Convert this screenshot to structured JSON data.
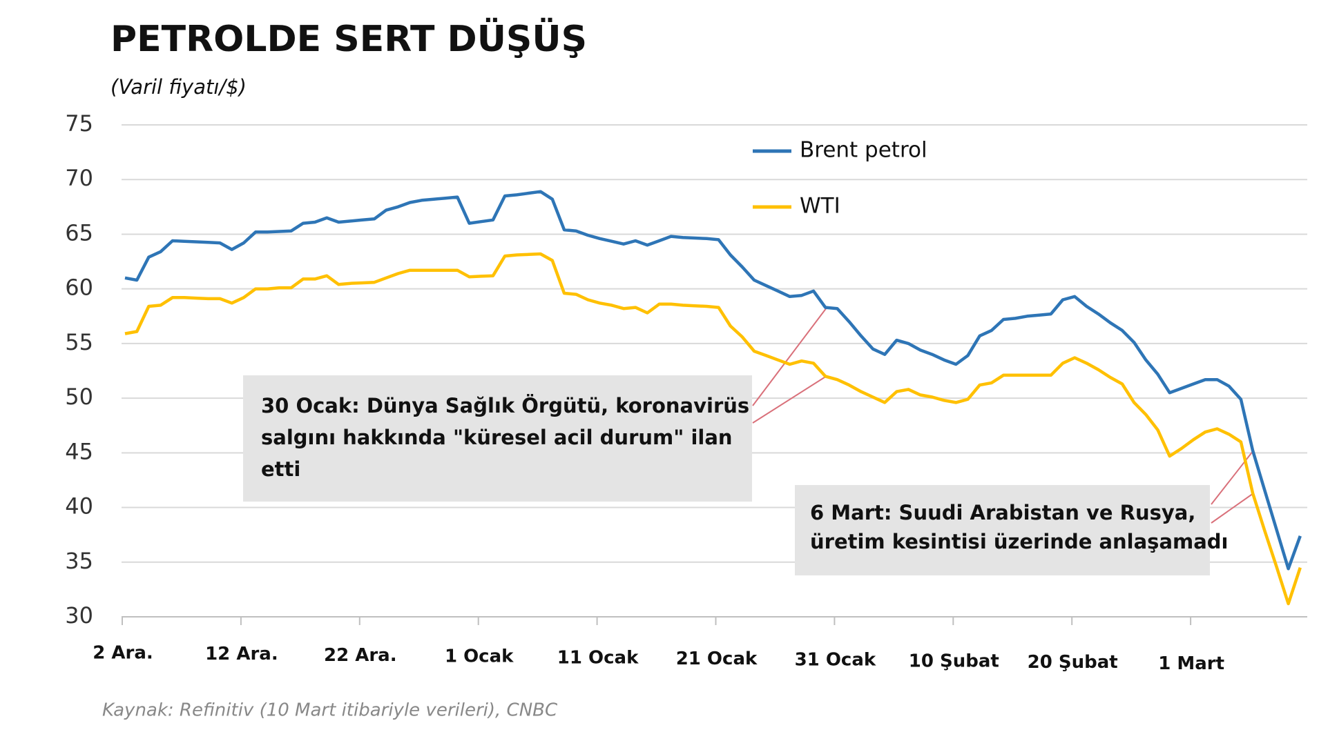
{
  "chart_data": {
    "type": "line",
    "title": "PETROLDE SERT DÜŞÜŞ",
    "subtitle": "(Varil fiyatı/$)",
    "source": "Kaynak: Refinitiv (10 Mart itibariyle verileri), CNBC",
    "annotations": [
      {
        "lines": [
          "30 Ocak: Dünya Sağlık Örgütü, koronavirüs",
          "salgını hakkında \"küresel acil durum\" ilan",
          "etti"
        ]
      },
      {
        "lines": [
          "6 Mart: Suudi Arabistan ve Rusya,",
          "üretim kesintisi üzerinde anlaşamadı"
        ]
      }
    ],
    "categories": [
      "2 Ara.",
      null,
      null,
      null,
      null,
      null,
      null,
      null,
      null,
      null,
      "12 Ara.",
      null,
      null,
      null,
      null,
      null,
      null,
      null,
      null,
      null,
      "22 Ara.",
      null,
      null,
      null,
      null,
      null,
      null,
      null,
      null,
      null,
      "1 Ocak",
      null,
      null,
      null,
      null,
      null,
      null,
      null,
      null,
      null,
      "11 Ocak",
      null,
      null,
      null,
      null,
      null,
      null,
      null,
      null,
      null,
      "21 Ocak",
      null,
      null,
      null,
      null,
      null,
      null,
      null,
      null,
      null,
      "31 Ocak",
      null,
      null,
      null,
      null,
      null,
      null,
      null,
      null,
      null,
      "10 Şubat",
      null,
      null,
      null,
      null,
      null,
      null,
      null,
      null,
      null,
      "20 Şubat",
      null,
      null,
      null,
      null,
      null,
      null,
      null,
      null,
      null,
      "1 Mart",
      null,
      null,
      null,
      null,
      null,
      null,
      null,
      null,
      null
    ],
    "series": [
      {
        "name": "Brent petrol",
        "color": "#2e75b6",
        "values": [
          61.0,
          60.8,
          62.9,
          63.4,
          64.4,
          64.35,
          64.3,
          64.25,
          64.2,
          63.6,
          64.2,
          65.2,
          65.2,
          65.25,
          65.3,
          66.0,
          66.1,
          66.5,
          66.1,
          66.2,
          66.3,
          66.4,
          67.2,
          67.5,
          67.9,
          68.1,
          68.2,
          68.3,
          68.4,
          66.0,
          66.15,
          66.3,
          68.5,
          68.6,
          68.75,
          68.9,
          68.2,
          65.4,
          65.3,
          64.9,
          64.6,
          64.35,
          64.1,
          64.4,
          64.0,
          64.4,
          64.8,
          64.7,
          64.65,
          64.6,
          64.5,
          63.1,
          62.0,
          60.8,
          60.3,
          59.8,
          59.3,
          59.4,
          59.8,
          58.3,
          58.2,
          57.0,
          55.7,
          54.5,
          54.0,
          55.3,
          55.0,
          54.4,
          54.0,
          53.5,
          53.1,
          53.9,
          55.7,
          56.2,
          57.2,
          57.3,
          57.5,
          57.6,
          57.7,
          59.0,
          59.3,
          58.4,
          57.7,
          56.9,
          56.2,
          55.1,
          53.5,
          52.2,
          50.5,
          50.9,
          51.3,
          51.7,
          51.7,
          51.1,
          49.9,
          45.2,
          41.6,
          38.0,
          34.4,
          37.4
        ]
      },
      {
        "name": "WTI",
        "color": "#ffc000",
        "values": [
          55.9,
          56.1,
          58.4,
          58.5,
          59.2,
          59.2,
          59.15,
          59.1,
          59.1,
          58.7,
          59.2,
          60.0,
          60.0,
          60.1,
          60.1,
          60.9,
          60.9,
          61.2,
          60.4,
          60.5,
          60.55,
          60.6,
          61.0,
          61.4,
          61.7,
          61.7,
          61.7,
          61.7,
          61.7,
          61.1,
          61.15,
          61.2,
          63.0,
          63.1,
          63.15,
          63.2,
          62.6,
          59.6,
          59.5,
          59.0,
          58.7,
          58.5,
          58.2,
          58.3,
          57.8,
          58.6,
          58.6,
          58.5,
          58.45,
          58.4,
          58.3,
          56.6,
          55.6,
          54.3,
          53.9,
          53.5,
          53.1,
          53.4,
          53.2,
          52.0,
          51.7,
          51.2,
          50.6,
          50.1,
          49.6,
          50.6,
          50.8,
          50.3,
          50.1,
          49.8,
          49.6,
          49.9,
          51.2,
          51.4,
          52.1,
          52.1,
          52.1,
          52.1,
          52.1,
          53.2,
          53.7,
          53.2,
          52.6,
          51.9,
          51.3,
          49.6,
          48.5,
          47.1,
          44.7,
          45.4,
          46.2,
          46.9,
          47.2,
          46.7,
          46.0,
          41.3,
          37.9,
          34.6,
          31.2,
          34.5
        ]
      }
    ],
    "ylim": [
      30,
      75
    ],
    "yticks": [
      30,
      35,
      40,
      45,
      50,
      55,
      60,
      65,
      70,
      75
    ],
    "grid": true,
    "legend": "top-right"
  }
}
